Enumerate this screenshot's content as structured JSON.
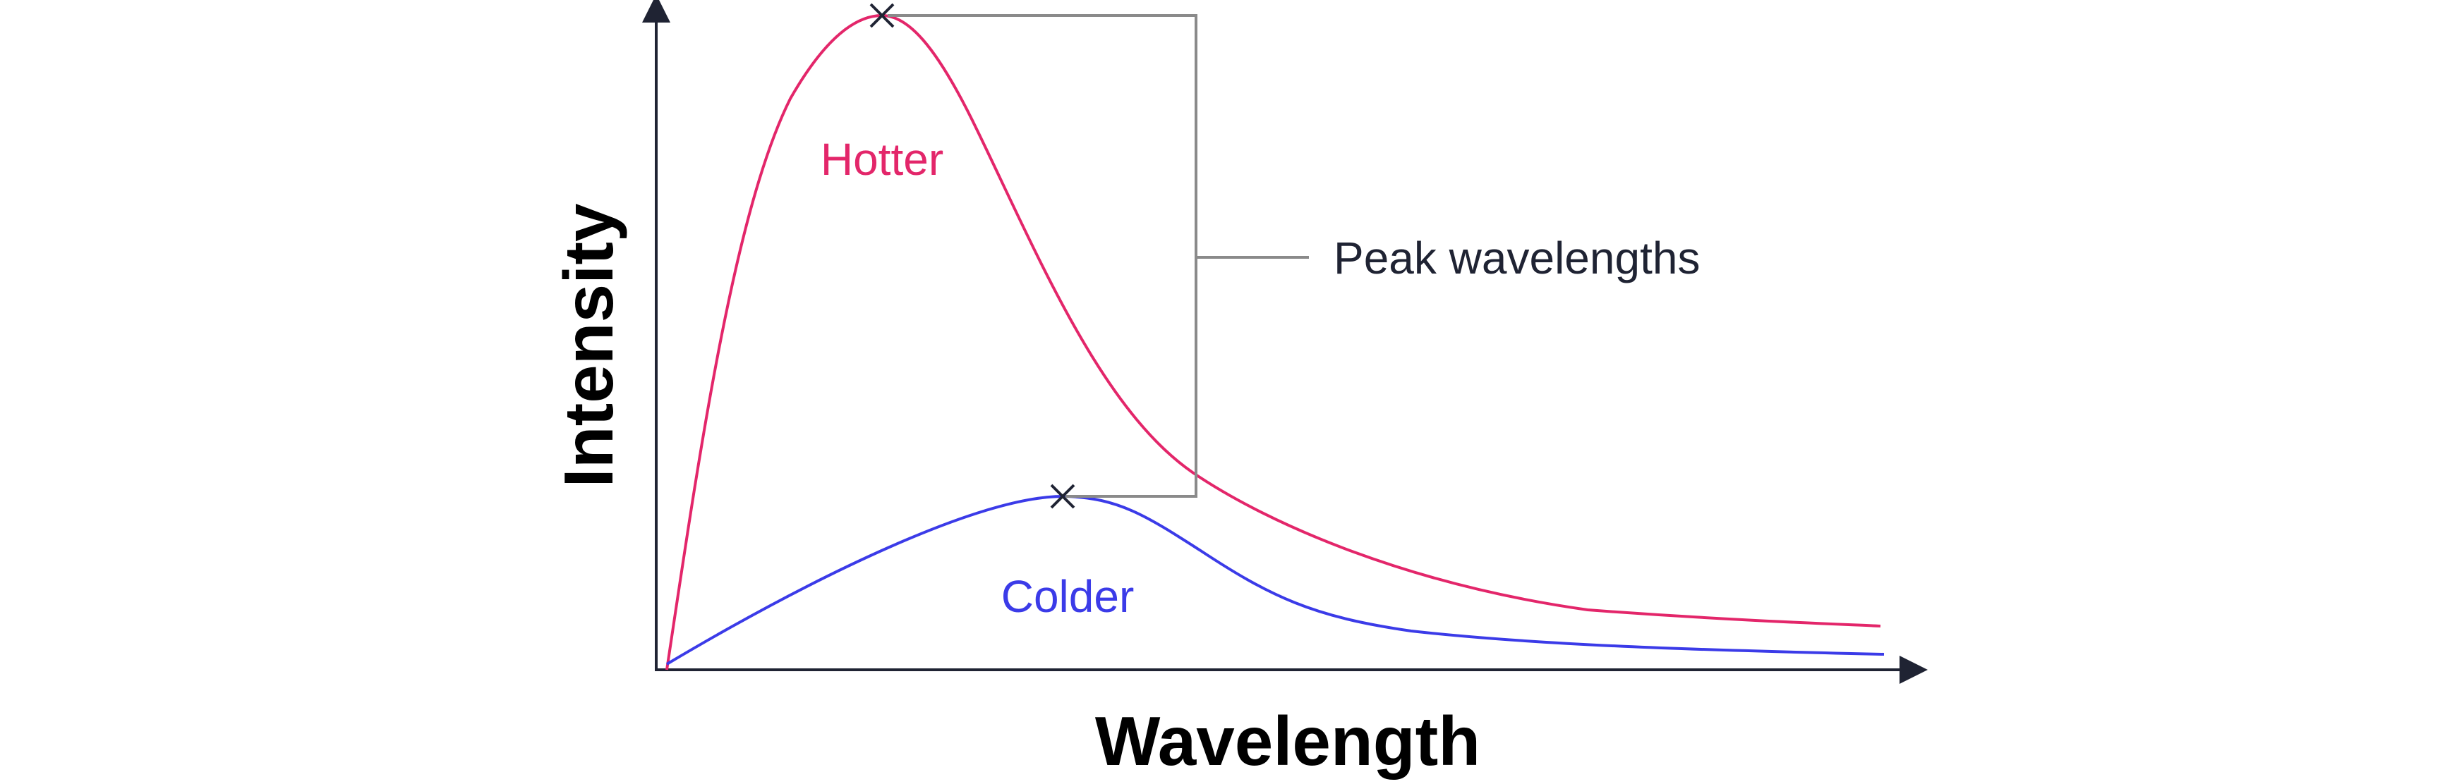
{
  "diagram": {
    "x_axis_label": "Wavelength",
    "y_axis_label": "Intensity",
    "curves": [
      {
        "label": "Hotter",
        "color": "#e3266a"
      },
      {
        "label": "Colder",
        "color": "#3b3be8"
      }
    ],
    "peak_marker_icon": "x-mark-icon",
    "annotation": {
      "label": "Peak wavelengths",
      "color": "#1f2333"
    },
    "colors": {
      "axis": "#1f2333",
      "bracket": "#8a8a8a"
    }
  }
}
